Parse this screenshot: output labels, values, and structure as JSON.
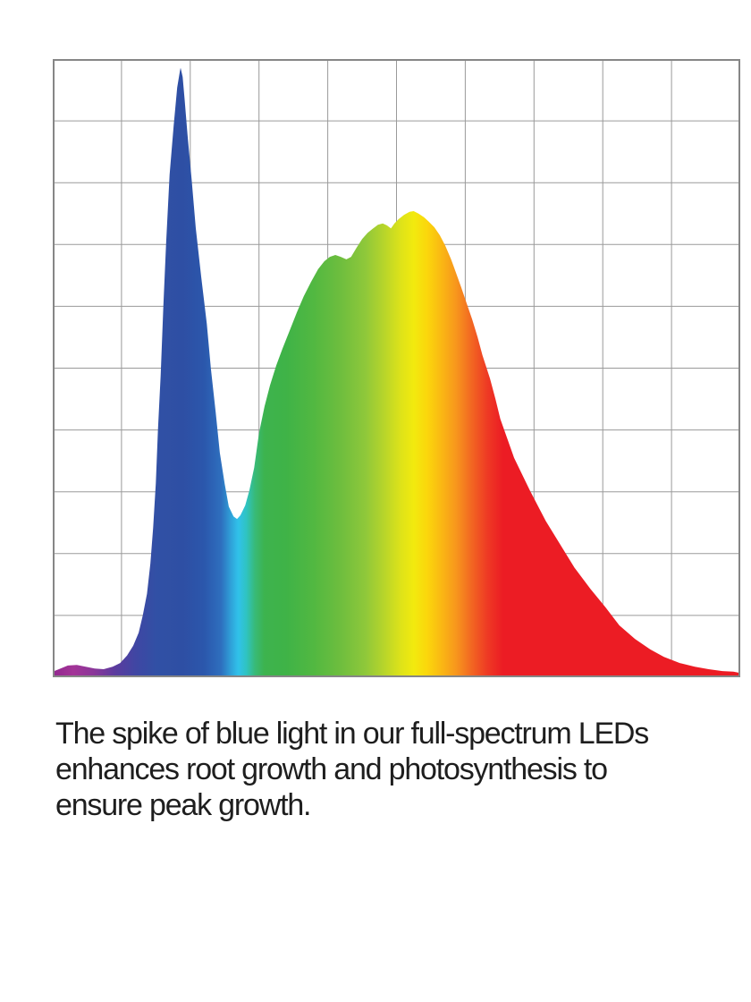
{
  "page": {
    "background_color": "#ffffff"
  },
  "caption": {
    "text": "The spike of blue light in our full-spectrum LEDs enhances root growth and photosynthesis to ensure peak growth.",
    "lines": [
      "The spike of blue light in our full-spectrum LEDs",
      "enhances root growth and photosynthesis to",
      "ensure peak growth."
    ],
    "color": "#1e1e1e"
  },
  "chart_data": {
    "type": "area",
    "title": "",
    "xlabel": "",
    "ylabel": "",
    "axis_tick_labels_visible": false,
    "legend": "none",
    "grid": {
      "columns": 10,
      "rows": 10,
      "line_color": "#9a9a9a",
      "border_color": "#868686"
    },
    "xlim": [
      0,
      100
    ],
    "ylim": [
      0,
      100
    ],
    "x_unit": "percent of chart width (wavelength, violet to red)",
    "y_unit": "relative intensity, percent of chart height",
    "features": {
      "blue_spike_peak": {
        "x_pct": 18.6,
        "intensity_pct": 98.6
      },
      "valley": {
        "x_pct": 26.8,
        "intensity_pct": 25.6
      },
      "main_peak": {
        "x_pct": 52.5,
        "intensity_pct": 75.4
      }
    },
    "points": [
      [
        0.0,
        0.9
      ],
      [
        0.9,
        1.3
      ],
      [
        2.2,
        1.9
      ],
      [
        3.5,
        2.0
      ],
      [
        4.8,
        1.7
      ],
      [
        6.1,
        1.4
      ],
      [
        7.4,
        1.3
      ],
      [
        8.7,
        1.7
      ],
      [
        9.8,
        2.3
      ],
      [
        10.8,
        3.5
      ],
      [
        11.7,
        5.1
      ],
      [
        12.5,
        7.2
      ],
      [
        13.1,
        10.0
      ],
      [
        13.7,
        13.5
      ],
      [
        14.2,
        18.4
      ],
      [
        14.6,
        24.2
      ],
      [
        15.0,
        31.4
      ],
      [
        15.3,
        40.1
      ],
      [
        15.7,
        48.8
      ],
      [
        16.1,
        60.3
      ],
      [
        16.5,
        70.5
      ],
      [
        17.0,
        81.3
      ],
      [
        17.6,
        89.3
      ],
      [
        18.1,
        95.4
      ],
      [
        18.5,
        98.1
      ],
      [
        18.6,
        98.6
      ],
      [
        18.9,
        97.1
      ],
      [
        19.2,
        93.3
      ],
      [
        19.6,
        87.8
      ],
      [
        20.2,
        80.6
      ],
      [
        20.8,
        72.6
      ],
      [
        21.6,
        64.7
      ],
      [
        22.4,
        57.2
      ],
      [
        23.0,
        49.9
      ],
      [
        23.7,
        42.8
      ],
      [
        24.3,
        36.3
      ],
      [
        25.0,
        31.3
      ],
      [
        25.6,
        27.6
      ],
      [
        26.3,
        26.0
      ],
      [
        26.8,
        25.6
      ],
      [
        27.3,
        26.2
      ],
      [
        28.0,
        27.8
      ],
      [
        28.6,
        30.2
      ],
      [
        29.3,
        33.9
      ],
      [
        30.0,
        39.5
      ],
      [
        30.8,
        43.8
      ],
      [
        31.6,
        47.2
      ],
      [
        32.5,
        50.4
      ],
      [
        33.4,
        53.1
      ],
      [
        34.5,
        56.2
      ],
      [
        35.5,
        59.0
      ],
      [
        36.5,
        61.6
      ],
      [
        37.6,
        64.0
      ],
      [
        38.6,
        66.0
      ],
      [
        39.5,
        67.3
      ],
      [
        40.3,
        68.0
      ],
      [
        41.1,
        68.3
      ],
      [
        41.9,
        68.0
      ],
      [
        42.7,
        67.6
      ],
      [
        43.4,
        68.0
      ],
      [
        44.2,
        69.5
      ],
      [
        45.0,
        70.9
      ],
      [
        45.8,
        71.9
      ],
      [
        46.6,
        72.6
      ],
      [
        47.3,
        73.2
      ],
      [
        48.0,
        73.4
      ],
      [
        48.6,
        73.1
      ],
      [
        49.2,
        72.6
      ],
      [
        49.7,
        73.4
      ],
      [
        50.3,
        74.1
      ],
      [
        51.1,
        74.8
      ],
      [
        51.9,
        75.3
      ],
      [
        52.5,
        75.4
      ],
      [
        53.2,
        75.0
      ],
      [
        54.0,
        74.4
      ],
      [
        54.7,
        73.7
      ],
      [
        55.5,
        72.8
      ],
      [
        56.3,
        71.5
      ],
      [
        57.1,
        69.8
      ],
      [
        57.9,
        67.7
      ],
      [
        58.6,
        65.6
      ],
      [
        59.4,
        63.1
      ],
      [
        60.2,
        60.5
      ],
      [
        61.0,
        57.9
      ],
      [
        61.8,
        55.0
      ],
      [
        62.5,
        52.1
      ],
      [
        63.6,
        48.3
      ],
      [
        64.4,
        45.0
      ],
      [
        65.1,
        41.8
      ],
      [
        67.1,
        35.5
      ],
      [
        69.4,
        30.2
      ],
      [
        71.7,
        25.3
      ],
      [
        73.9,
        21.3
      ],
      [
        75.9,
        17.7
      ],
      [
        78.2,
        14.3
      ],
      [
        80.4,
        11.3
      ],
      [
        82.4,
        8.4
      ],
      [
        84.7,
        6.2
      ],
      [
        86.9,
        4.5
      ],
      [
        88.9,
        3.3
      ],
      [
        91.2,
        2.3
      ],
      [
        93.4,
        1.7
      ],
      [
        95.4,
        1.3
      ],
      [
        97.4,
        1.0
      ],
      [
        99.0,
        0.9
      ],
      [
        100.0,
        0.7
      ]
    ],
    "gradient_stops": [
      {
        "pos": 0,
        "color": "#92278F"
      },
      {
        "pos": 3,
        "color": "#A33497"
      },
      {
        "pos": 6,
        "color": "#8A3699"
      },
      {
        "pos": 9,
        "color": "#5C3B9E"
      },
      {
        "pos": 12,
        "color": "#4046A3"
      },
      {
        "pos": 15,
        "color": "#3150A5"
      },
      {
        "pos": 19,
        "color": "#2E4FA4"
      },
      {
        "pos": 22,
        "color": "#2B57AC"
      },
      {
        "pos": 24.5,
        "color": "#2E6FBE"
      },
      {
        "pos": 26,
        "color": "#2FA4DA"
      },
      {
        "pos": 27,
        "color": "#30C2EA"
      },
      {
        "pos": 28.2,
        "color": "#2FC3C0"
      },
      {
        "pos": 29.4,
        "color": "#38BA78"
      },
      {
        "pos": 30.8,
        "color": "#3DB34E"
      },
      {
        "pos": 34,
        "color": "#3FB347"
      },
      {
        "pos": 38,
        "color": "#52B841"
      },
      {
        "pos": 42,
        "color": "#6FBE3E"
      },
      {
        "pos": 45.5,
        "color": "#8FC83A"
      },
      {
        "pos": 48,
        "color": "#B4D42C"
      },
      {
        "pos": 50.5,
        "color": "#DCE21A"
      },
      {
        "pos": 52.5,
        "color": "#F2EA0E"
      },
      {
        "pos": 54.5,
        "color": "#FBD60C"
      },
      {
        "pos": 56.5,
        "color": "#FAB813"
      },
      {
        "pos": 58.8,
        "color": "#F7941D"
      },
      {
        "pos": 61,
        "color": "#F26522"
      },
      {
        "pos": 63.2,
        "color": "#EE3A24"
      },
      {
        "pos": 65.5,
        "color": "#EC1C24"
      },
      {
        "pos": 100,
        "color": "#EC1C24"
      }
    ]
  }
}
